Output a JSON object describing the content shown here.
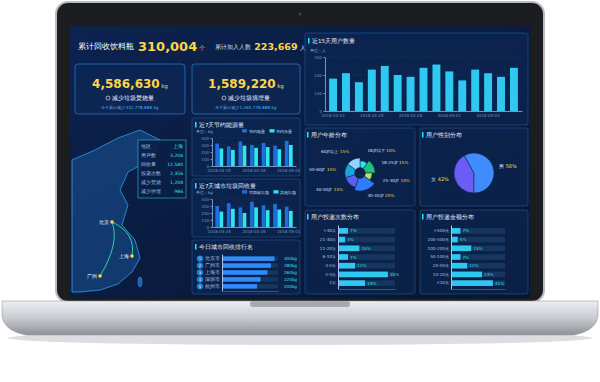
{
  "header": {
    "title": "累计回收饮料瓶",
    "total": "310,004",
    "total_unit": "个",
    "joined_label": "累计加入人数",
    "joined": "223,669",
    "joined_unit": "人"
  },
  "kpis": [
    {
      "value": "4,586,630",
      "unit": "kg",
      "label": "减少垃圾焚烧量",
      "note": "今年累计减少332,778,888 kg"
    },
    {
      "value": "1,589,220",
      "unit": "kg",
      "label": "减少垃圾填埋量",
      "note": "今年累计减少1,561,778,888 kg"
    }
  ],
  "map": {
    "cities": [
      "北京",
      "上海",
      "广州"
    ],
    "table": {
      "rows": [
        [
          "地区",
          "上海"
        ],
        [
          "用户数",
          "3,206"
        ],
        [
          "回收量",
          "12,580"
        ],
        [
          "投递次数",
          "2,356"
        ],
        [
          "减少焚烧",
          "1,208"
        ],
        [
          "减少填埋",
          "986"
        ]
      ]
    }
  },
  "chart_data": [
    {
      "type": "bar",
      "title": "近7天节约能源量",
      "y_label": "单位：kg",
      "categories": [
        "2018-04-25",
        null,
        null,
        "2018-04-28",
        null,
        null,
        "2018-05-01"
      ],
      "series": [
        {
          "name": "节约电量",
          "color": "#1e6fd9",
          "values": [
            320,
            280,
            350,
            300,
            330,
            290,
            360
          ]
        },
        {
          "name": "节约水量",
          "color": "#2ee6f0",
          "values": [
            250,
            230,
            290,
            260,
            270,
            240,
            300
          ]
        }
      ],
      "ylim": [
        0,
        400
      ],
      "yticks": [
        0,
        100,
        200,
        300,
        400
      ],
      "grid": true,
      "legend": "top"
    },
    {
      "type": "bar",
      "title": "近7天城市垃圾回收量",
      "y_label": "单位：kg",
      "categories": [
        "2018-04-25",
        null,
        null,
        "2018-04-28",
        null,
        null,
        "2018-05-01"
      ],
      "series": [
        {
          "name": "可回收垃圾",
          "color": "#1e6fd9",
          "values": [
            300,
            340,
            280,
            360,
            310,
            330,
            290
          ]
        },
        {
          "name": "其他垃圾",
          "color": "#2ee6f0",
          "values": [
            220,
            260,
            200,
            280,
            240,
            250,
            230
          ]
        }
      ],
      "ylim": [
        0,
        400
      ],
      "yticks": [
        0,
        100,
        200,
        300,
        400
      ],
      "grid": true,
      "legend": "top"
    },
    {
      "type": "bar",
      "orientation": "horizontal",
      "title": "今日城市回收排行名",
      "categories": [
        "北京市",
        "广州市",
        "上海市",
        "深圳市",
        "杭州市"
      ],
      "ranks": [
        1,
        2,
        3,
        4,
        5
      ],
      "values": [
        300,
        280,
        260,
        220,
        200
      ],
      "value_labels": [
        "300kg",
        "280kg",
        "260kg",
        "220kg",
        "200kg"
      ],
      "color": "#2f8cff",
      "xlim": [
        0,
        320
      ],
      "xticks": [],
      "tick_labels": "y",
      "data_labels": true
    },
    {
      "type": "bar",
      "title": "近15天用户数量",
      "y_label": "单位：人",
      "categories": [
        "2018-04-22",
        null,
        null,
        "2018-04-25",
        null,
        null,
        "2018-04-28",
        null,
        null,
        "2018-05-01",
        null,
        null,
        "2018-05-04",
        null,
        null
      ],
      "values": [
        180,
        210,
        160,
        230,
        250,
        200,
        190,
        240,
        258,
        220,
        170,
        230,
        210,
        190,
        240
      ],
      "color": "#2ec8f0",
      "ylim": [
        0,
        300
      ],
      "yticks": [
        0,
        100,
        200,
        300
      ],
      "grid": true
    },
    {
      "type": "rose",
      "title": "用户年龄分布",
      "categories": [
        "18岁以下",
        "18-25岁",
        "25-30岁",
        "30-40岁",
        "40-50岁",
        "50-60岁",
        "60岁以上"
      ],
      "values": [
        10,
        15,
        10,
        20,
        15,
        15,
        15
      ],
      "value_labels": [
        "10%",
        "15%",
        "10%",
        "20%",
        "15%",
        "15%",
        "15%"
      ],
      "colors": [
        "#2ee6f0",
        "#1fc27a",
        "#b6e35a",
        "#2f7bff",
        "#5b5ff5",
        "#1aa3d9",
        "#8fd3ff"
      ],
      "data_labels": true
    },
    {
      "type": "pie",
      "title": "用户性别分布",
      "categories": [
        "女",
        "男"
      ],
      "values": [
        42,
        58
      ],
      "value_labels": [
        "42%",
        "58%"
      ],
      "colors": [
        "#6a5cf5",
        "#3f8cff"
      ],
      "data_labels": true
    },
    {
      "type": "bar",
      "orientation": "horizontal",
      "title": "用户投递次数分布",
      "categories": [
        ">30次",
        "21-30次",
        "11-20次",
        "6-10次",
        "4-5次",
        "2-3次",
        "1次"
      ],
      "values": [
        7,
        5,
        15,
        7,
        12,
        35,
        19
      ],
      "value_labels": [
        "7%",
        "5%",
        "15%",
        "7%",
        "12%",
        "35%",
        "19%"
      ],
      "color": "#2ec8f0",
      "xlim": [
        0,
        40
      ],
      "xticks": [],
      "tick_labels": "y",
      "data_labels": true
    },
    {
      "type": "bar",
      "orientation": "horizontal",
      "title": "用户投递金额分布",
      "categories": [
        ">500元",
        "200-500元",
        "100-200元",
        "50-100元",
        "20-50元",
        "10-20元",
        "<10元"
      ],
      "values": [
        7,
        5,
        15,
        7,
        12,
        23,
        31
      ],
      "value_labels": [
        "7%",
        "5%",
        "15%",
        "7%",
        "12%",
        "23%",
        "31%"
      ],
      "color": "#2ec8f0",
      "xlim": [
        0,
        40
      ],
      "xticks": [],
      "tick_labels": "y",
      "data_labels": true
    }
  ]
}
